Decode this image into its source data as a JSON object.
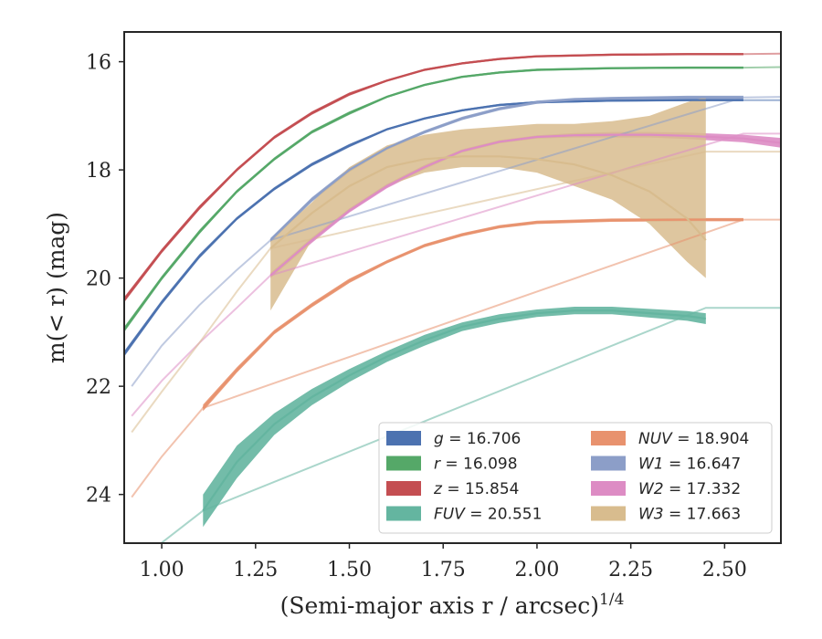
{
  "chart_data": {
    "type": "line",
    "xlabel": "(Semi-major axis r / arcsec)",
    "xlabel_exponent": "1/4",
    "ylabel": "m(< r) (mag)",
    "xlim": [
      0.9,
      2.65
    ],
    "ylim": [
      24.9,
      15.45
    ],
    "y_inverted": true,
    "xticks": [
      1.0,
      1.25,
      1.5,
      1.75,
      2.0,
      2.25,
      2.5
    ],
    "xtick_labels": [
      "1.00",
      "1.25",
      "1.50",
      "1.75",
      "2.00",
      "2.25",
      "2.50"
    ],
    "yticks": [
      16,
      18,
      20,
      22,
      24
    ],
    "ytick_labels": [
      "16",
      "18",
      "20",
      "22",
      "24"
    ],
    "grid": false,
    "legend_position": "lower-right",
    "legend_columns": 2,
    "series": [
      {
        "name": "g = 16.706",
        "legend_var": "g",
        "legend_value": "16.706",
        "color": "#4c72b0",
        "x": [
          0.9,
          1.0,
          1.1,
          1.2,
          1.3,
          1.4,
          1.5,
          1.6,
          1.7,
          1.8,
          1.9,
          2.0,
          2.2,
          2.4,
          2.55
        ],
        "y": [
          21.4,
          20.45,
          19.6,
          18.9,
          18.35,
          17.9,
          17.55,
          17.25,
          17.05,
          16.9,
          16.8,
          16.75,
          16.72,
          16.71,
          16.71
        ],
        "err": [
          0.05,
          0.04,
          0.04,
          0.03,
          0.03,
          0.03,
          0.03,
          0.02,
          0.02,
          0.02,
          0.02,
          0.02,
          0.02,
          0.02,
          0.02
        ],
        "ext_x": [
          2.55,
          2.65
        ],
        "ext_y": [
          16.71,
          16.71
        ]
      },
      {
        "name": "r = 16.098",
        "legend_var": "r",
        "legend_value": "16.098",
        "color": "#55a868",
        "x": [
          0.9,
          1.0,
          1.1,
          1.2,
          1.3,
          1.4,
          1.5,
          1.6,
          1.7,
          1.8,
          1.9,
          2.0,
          2.2,
          2.4,
          2.55
        ],
        "y": [
          20.95,
          20.0,
          19.15,
          18.4,
          17.8,
          17.3,
          16.95,
          16.65,
          16.43,
          16.28,
          16.2,
          16.15,
          16.12,
          16.11,
          16.11
        ],
        "err": [
          0.05,
          0.04,
          0.04,
          0.03,
          0.03,
          0.03,
          0.03,
          0.02,
          0.02,
          0.02,
          0.02,
          0.02,
          0.02,
          0.02,
          0.02
        ],
        "ext_x": [
          2.55,
          2.65
        ],
        "ext_y": [
          16.11,
          16.1
        ]
      },
      {
        "name": "z = 15.854",
        "legend_var": "z",
        "legend_value": "15.854",
        "color": "#c44e52",
        "x": [
          0.9,
          1.0,
          1.1,
          1.2,
          1.3,
          1.4,
          1.5,
          1.6,
          1.7,
          1.8,
          1.9,
          2.0,
          2.2,
          2.4,
          2.55
        ],
        "y": [
          20.4,
          19.5,
          18.7,
          18.0,
          17.4,
          16.95,
          16.6,
          16.35,
          16.15,
          16.03,
          15.95,
          15.9,
          15.87,
          15.86,
          15.86
        ],
        "err": [
          0.05,
          0.04,
          0.04,
          0.03,
          0.03,
          0.03,
          0.03,
          0.02,
          0.02,
          0.02,
          0.02,
          0.02,
          0.02,
          0.02,
          0.02
        ],
        "ext_x": [
          2.55,
          2.65
        ],
        "ext_y": [
          15.86,
          15.85
        ]
      },
      {
        "name": "FUV = 20.551",
        "legend_var": "FUV",
        "legend_value": "20.551",
        "color": "#64b5a0",
        "x": [
          1.11,
          1.2,
          1.3,
          1.4,
          1.5,
          1.6,
          1.7,
          1.8,
          1.9,
          2.0,
          2.1,
          2.2,
          2.3,
          2.4,
          2.45
        ],
        "y": [
          24.3,
          23.4,
          22.7,
          22.2,
          21.8,
          21.45,
          21.15,
          20.9,
          20.75,
          20.65,
          20.6,
          20.6,
          20.65,
          20.7,
          20.75
        ],
        "err": [
          0.3,
          0.3,
          0.2,
          0.15,
          0.12,
          0.1,
          0.1,
          0.08,
          0.08,
          0.07,
          0.07,
          0.07,
          0.08,
          0.09,
          0.1
        ],
        "ext_x": [
          0.98,
          1.11,
          2.45,
          2.65
        ],
        "ext_y": [
          25.0,
          24.3,
          20.55,
          20.55
        ]
      },
      {
        "name": "NUV = 18.904",
        "legend_var": "NUV",
        "legend_value": "18.904",
        "color": "#e8926e",
        "x": [
          1.11,
          1.2,
          1.3,
          1.4,
          1.5,
          1.6,
          1.7,
          1.8,
          1.9,
          2.0,
          2.2,
          2.4,
          2.55
        ],
        "y": [
          22.4,
          21.7,
          21.0,
          20.5,
          20.05,
          19.7,
          19.4,
          19.2,
          19.05,
          18.97,
          18.93,
          18.92,
          18.92
        ],
        "err": [
          0.06,
          0.05,
          0.04,
          0.04,
          0.04,
          0.03,
          0.03,
          0.03,
          0.03,
          0.03,
          0.03,
          0.03,
          0.03
        ],
        "ext_x": [
          0.92,
          1.0,
          1.11,
          2.55,
          2.65
        ],
        "ext_y": [
          24.05,
          23.3,
          22.4,
          18.92,
          18.92
        ]
      },
      {
        "name": "W1 = 16.647",
        "legend_var": "W1",
        "legend_value": "16.647",
        "color": "#8c9ec8",
        "x": [
          1.29,
          1.4,
          1.5,
          1.6,
          1.7,
          1.8,
          1.9,
          2.0,
          2.1,
          2.2,
          2.3,
          2.4,
          2.55
        ],
        "y": [
          19.3,
          18.55,
          18.0,
          17.6,
          17.3,
          17.05,
          16.87,
          16.75,
          16.7,
          16.68,
          16.67,
          16.66,
          16.66
        ],
        "err": [
          0.04,
          0.04,
          0.04,
          0.03,
          0.03,
          0.03,
          0.03,
          0.03,
          0.03,
          0.03,
          0.03,
          0.03,
          0.03
        ],
        "ext_x": [
          0.92,
          1.0,
          1.1,
          1.2,
          1.29,
          2.55,
          2.65
        ],
        "ext_y": [
          22.0,
          21.25,
          20.5,
          19.85,
          19.3,
          16.66,
          16.65
        ]
      },
      {
        "name": "W2 = 17.332",
        "legend_var": "W2",
        "legend_value": "17.332",
        "color": "#dd8cc4",
        "x": [
          1.29,
          1.4,
          1.5,
          1.6,
          1.7,
          1.8,
          1.9,
          2.0,
          2.1,
          2.2,
          2.3,
          2.4,
          2.55,
          2.65
        ],
        "y": [
          19.95,
          19.3,
          18.75,
          18.3,
          17.95,
          17.65,
          17.48,
          17.39,
          17.36,
          17.35,
          17.35,
          17.37,
          17.42,
          17.5
        ],
        "err": [
          0.05,
          0.05,
          0.04,
          0.04,
          0.04,
          0.03,
          0.03,
          0.03,
          0.04,
          0.05,
          0.05,
          0.06,
          0.07,
          0.09
        ],
        "ext_x": [
          0.92,
          1.0,
          1.1,
          1.2,
          1.29,
          2.55,
          2.65
        ],
        "ext_y": [
          22.55,
          21.9,
          21.2,
          20.55,
          19.95,
          17.33,
          17.33
        ]
      },
      {
        "name": "W3 = 17.663",
        "legend_var": "W3",
        "legend_value": "17.663",
        "color": "#d8bc8e",
        "x": [
          1.29,
          1.4,
          1.5,
          1.6,
          1.7,
          1.8,
          1.9,
          2.0,
          2.1,
          2.2,
          2.3,
          2.4,
          2.45
        ],
        "y": [
          19.45,
          18.8,
          18.3,
          17.95,
          17.8,
          17.75,
          17.75,
          17.8,
          17.9,
          18.1,
          18.4,
          18.9,
          19.3
        ],
        "lower": [
          19.3,
          18.6,
          17.95,
          17.55,
          17.35,
          17.25,
          17.2,
          17.15,
          17.15,
          17.1,
          17.0,
          16.75,
          16.65
        ],
        "upper": [
          20.6,
          19.3,
          18.75,
          18.3,
          18.05,
          17.95,
          17.95,
          18.05,
          18.3,
          18.55,
          19.0,
          19.7,
          20.0
        ],
        "ext_x": [
          0.92,
          1.0,
          1.1,
          1.2,
          1.29,
          2.45,
          2.65
        ],
        "ext_y": [
          22.85,
          22.1,
          21.2,
          20.25,
          19.45,
          17.663,
          17.663
        ]
      }
    ]
  }
}
